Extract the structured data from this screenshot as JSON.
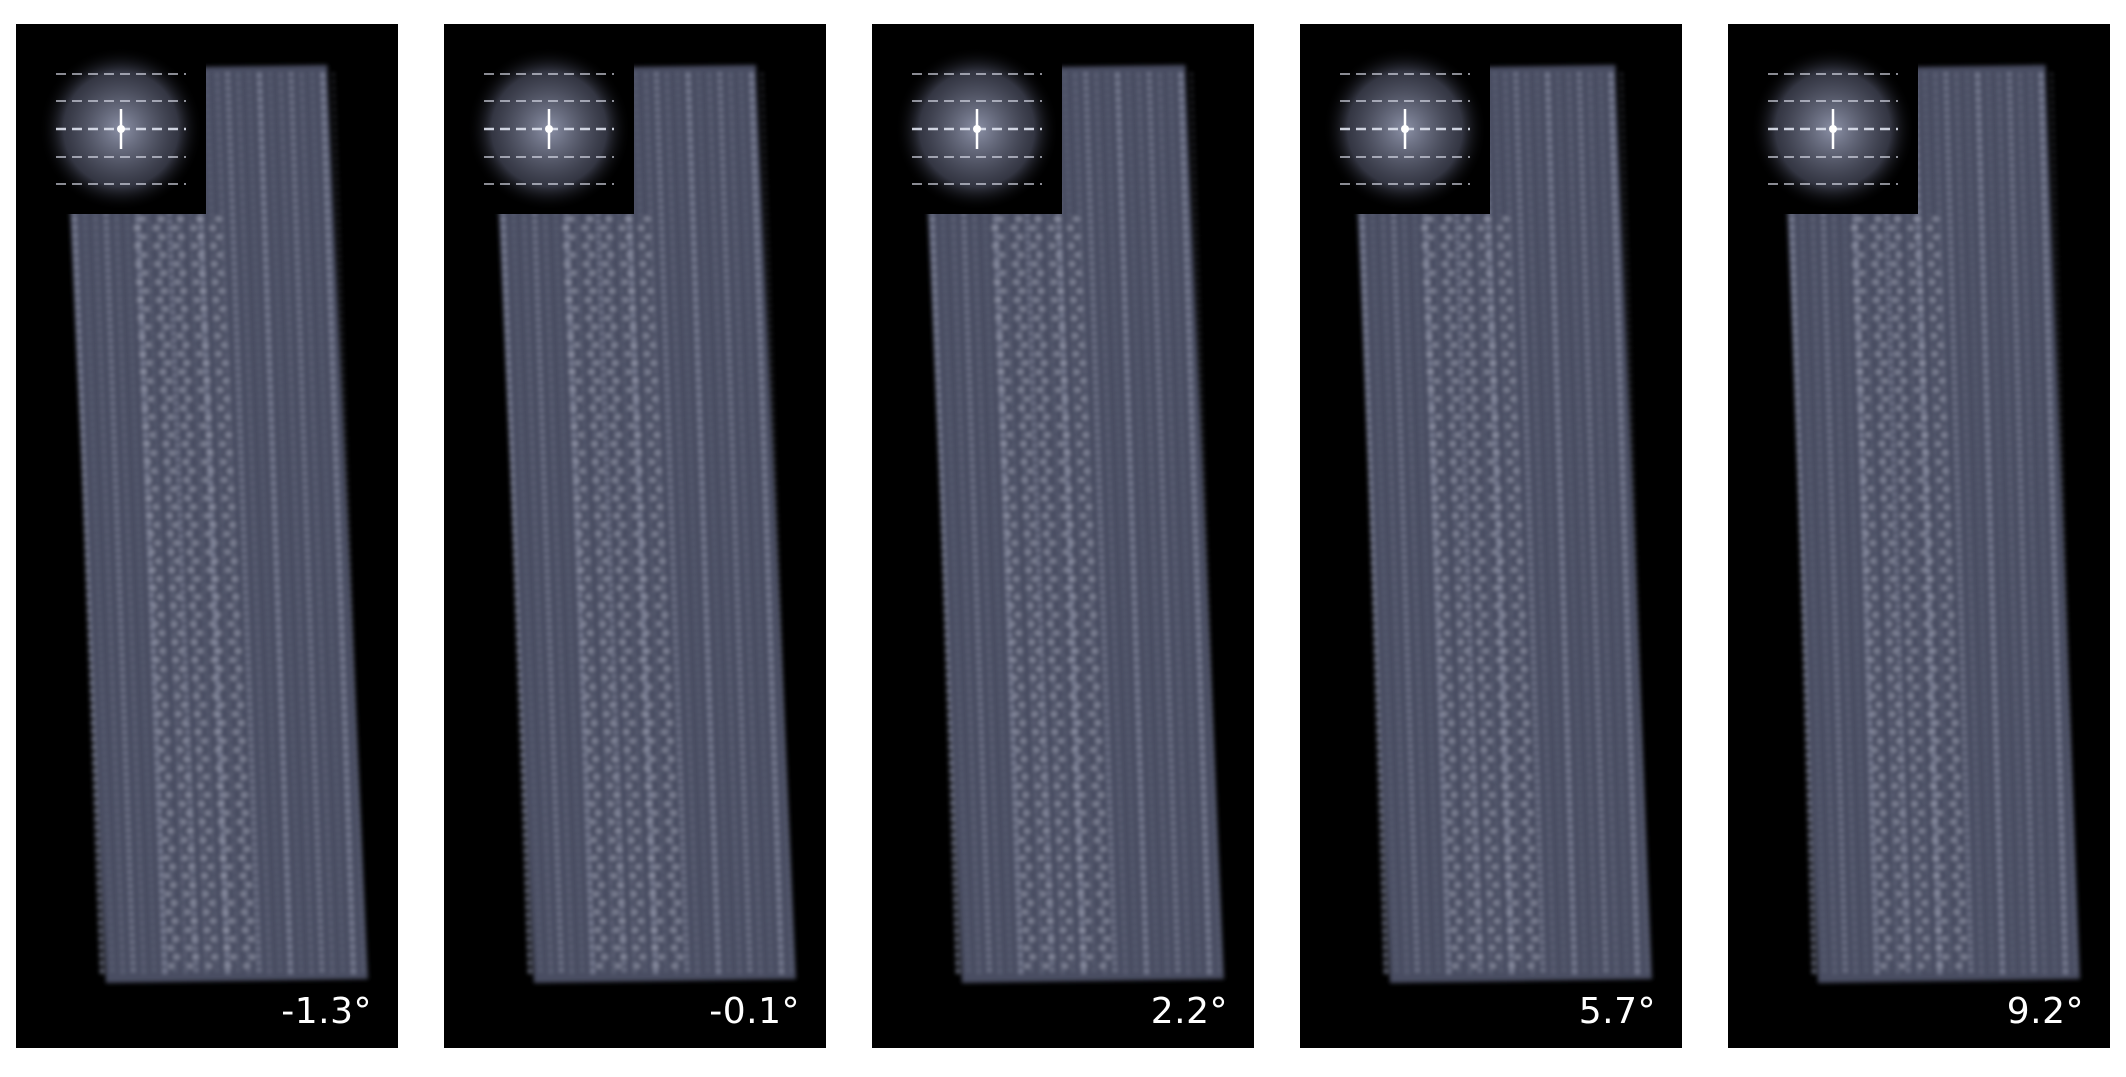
{
  "panels": [
    {
      "angle": "-1.3°",
      "tilt_deg": -1.3
    },
    {
      "angle": "-0.1°",
      "tilt_deg": -0.1
    },
    {
      "angle": "2.2°",
      "tilt_deg": 2.2
    },
    {
      "angle": "5.7°",
      "tilt_deg": 5.7
    },
    {
      "angle": "9.2°",
      "tilt_deg": 9.2
    }
  ],
  "colors": {
    "background": "#000000",
    "filament": "#8a8fa6",
    "filament_dark": "#4a4e62",
    "fft_glow": "#5d6178",
    "label": "#ffffff"
  }
}
